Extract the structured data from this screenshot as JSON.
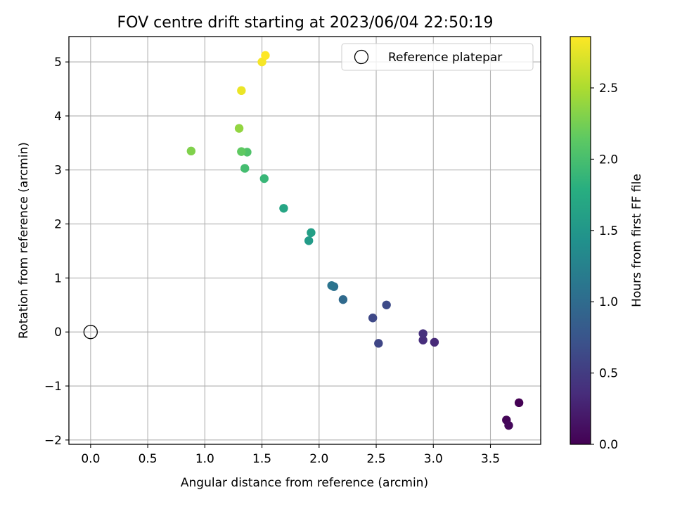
{
  "chart_data": {
    "type": "scatter",
    "title": "FOV centre drift starting at 2023/06/04 22:50:19",
    "xlabel": "Angular distance from reference (arcmin)",
    "ylabel": "Rotation from reference (arcmin)",
    "xlim": [
      -0.19,
      3.94
    ],
    "ylim": [
      -2.08,
      5.47
    ],
    "xticks": [
      0.0,
      0.5,
      1.0,
      1.5,
      2.0,
      2.5,
      3.0,
      3.5
    ],
    "xtick_labels": [
      "0.0",
      "0.5",
      "1.0",
      "1.5",
      "2.0",
      "2.5",
      "3.0",
      "3.5"
    ],
    "yticks": [
      -2,
      -1,
      0,
      1,
      2,
      3,
      4,
      5
    ],
    "ytick_labels": [
      "−2",
      "−1",
      "0",
      "1",
      "2",
      "3",
      "4",
      "5"
    ],
    "grid": true,
    "legend_position": "top-right",
    "legend": [
      {
        "label": "Reference platepar",
        "marker": "open-circle",
        "color": "#000000"
      }
    ],
    "reference_point": {
      "x": 0.0,
      "y": 0.0
    },
    "colormap": "viridis",
    "colorbar": {
      "label": "Hours from first FF file",
      "range": [
        0.0,
        2.86
      ],
      "ticks": [
        0.0,
        0.5,
        1.0,
        1.5,
        2.0,
        2.5
      ],
      "tick_labels": [
        "0.0",
        "0.5",
        "1.0",
        "1.5",
        "2.0",
        "2.5"
      ]
    },
    "points": [
      {
        "x": 3.75,
        "y": -1.31,
        "c": 0.0
      },
      {
        "x": 3.64,
        "y": -1.63,
        "c": 0.03
      },
      {
        "x": 3.66,
        "y": -1.73,
        "c": 0.06
      },
      {
        "x": 3.01,
        "y": -0.19,
        "c": 0.33
      },
      {
        "x": 2.91,
        "y": -0.15,
        "c": 0.37
      },
      {
        "x": 2.91,
        "y": -0.03,
        "c": 0.4
      },
      {
        "x": 2.52,
        "y": -0.21,
        "c": 0.6
      },
      {
        "x": 2.59,
        "y": 0.5,
        "c": 0.65
      },
      {
        "x": 2.47,
        "y": 0.26,
        "c": 0.62
      },
      {
        "x": 2.21,
        "y": 0.6,
        "c": 0.98
      },
      {
        "x": 2.13,
        "y": 0.84,
        "c": 1.05
      },
      {
        "x": 2.11,
        "y": 0.86,
        "c": 1.1
      },
      {
        "x": 1.91,
        "y": 1.69,
        "c": 1.55
      },
      {
        "x": 1.93,
        "y": 1.84,
        "c": 1.6
      },
      {
        "x": 1.69,
        "y": 2.29,
        "c": 1.68
      },
      {
        "x": 1.52,
        "y": 2.84,
        "c": 1.9
      },
      {
        "x": 1.35,
        "y": 3.03,
        "c": 1.98
      },
      {
        "x": 1.37,
        "y": 3.33,
        "c": 2.05
      },
      {
        "x": 1.32,
        "y": 3.34,
        "c": 2.15
      },
      {
        "x": 0.88,
        "y": 3.35,
        "c": 2.3
      },
      {
        "x": 1.3,
        "y": 3.77,
        "c": 2.38
      },
      {
        "x": 1.32,
        "y": 4.47,
        "c": 2.78
      },
      {
        "x": 1.5,
        "y": 5.0,
        "c": 2.83
      },
      {
        "x": 1.53,
        "y": 5.12,
        "c": 2.86
      }
    ]
  }
}
